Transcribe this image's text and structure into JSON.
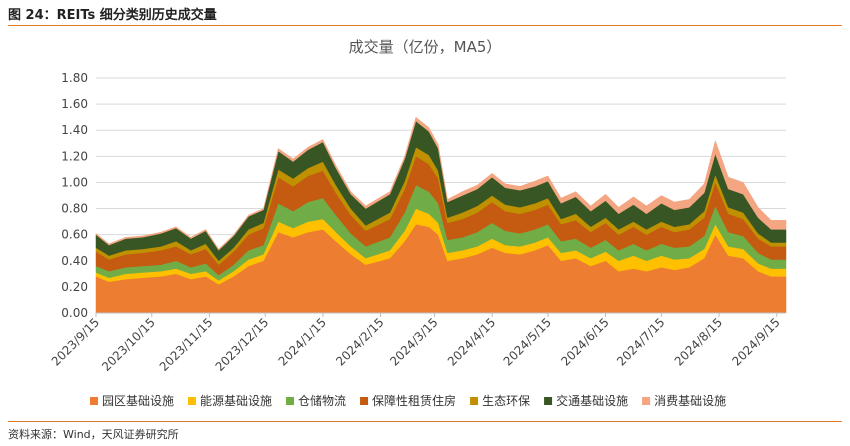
{
  "figure": {
    "title": "图 24：REITs 细分类别历史成交量",
    "source": "资料来源：Wind，天风证券研究所"
  },
  "chart_data": {
    "type": "area",
    "stacked": true,
    "title": "成交量（亿份，MA5）",
    "xlabel": "",
    "ylabel": "",
    "ylim": [
      0,
      1.8
    ],
    "yticks": [
      "0.00",
      "0.20",
      "0.40",
      "0.60",
      "0.80",
      "1.00",
      "1.20",
      "1.40",
      "1.60",
      "1.80"
    ],
    "x_start": "2023/9/15",
    "x_end": "2024/9/20",
    "xticks": [
      "2023/9/15",
      "2023/10/15",
      "2023/11/15",
      "2023/12/15",
      "2024/1/15",
      "2024/2/15",
      "2024/3/15",
      "2024/4/15",
      "2024/5/15",
      "2024/6/15",
      "2024/7/15",
      "2024/8/15",
      "2024/9/15"
    ],
    "grid": "horizontal",
    "legend_position": "bottom",
    "x": [
      "2023/9/15",
      "2023/9/22",
      "2023/10/1",
      "2023/10/10",
      "2023/10/20",
      "2023/10/28",
      "2023/11/5",
      "2023/11/13",
      "2023/11/20",
      "2023/11/28",
      "2023/12/6",
      "2023/12/14",
      "2023/12/22",
      "2023/12/30",
      "2024/1/7",
      "2024/1/15",
      "2024/1/22",
      "2024/1/30",
      "2024/2/7",
      "2024/2/20",
      "2024/2/28",
      "2024/3/5",
      "2024/3/12",
      "2024/3/17",
      "2024/3/22",
      "2024/3/30",
      "2024/4/7",
      "2024/4/15",
      "2024/4/22",
      "2024/4/30",
      "2024/5/8",
      "2024/5/15",
      "2024/5/22",
      "2024/5/30",
      "2024/6/7",
      "2024/6/15",
      "2024/6/22",
      "2024/6/30",
      "2024/7/7",
      "2024/7/15",
      "2024/7/22",
      "2024/7/30",
      "2024/8/7",
      "2024/8/13",
      "2024/8/20",
      "2024/8/28",
      "2024/9/5",
      "2024/9/12",
      "2024/9/20"
    ],
    "series": [
      {
        "name": "园区基础设施",
        "color": "#ed7d31",
        "values": [
          0.28,
          0.24,
          0.26,
          0.27,
          0.28,
          0.3,
          0.26,
          0.28,
          0.22,
          0.28,
          0.36,
          0.4,
          0.62,
          0.58,
          0.62,
          0.64,
          0.55,
          0.45,
          0.37,
          0.42,
          0.55,
          0.68,
          0.66,
          0.6,
          0.4,
          0.42,
          0.45,
          0.5,
          0.46,
          0.45,
          0.48,
          0.52,
          0.4,
          0.42,
          0.36,
          0.4,
          0.32,
          0.34,
          0.32,
          0.35,
          0.33,
          0.35,
          0.42,
          0.6,
          0.44,
          0.42,
          0.32,
          0.28,
          0.28
        ]
      },
      {
        "name": "能源基础设施",
        "color": "#ffc000",
        "values": [
          0.03,
          0.03,
          0.04,
          0.04,
          0.04,
          0.04,
          0.04,
          0.04,
          0.03,
          0.04,
          0.05,
          0.05,
          0.08,
          0.07,
          0.08,
          0.08,
          0.07,
          0.06,
          0.05,
          0.06,
          0.08,
          0.12,
          0.1,
          0.09,
          0.06,
          0.06,
          0.06,
          0.07,
          0.06,
          0.06,
          0.06,
          0.06,
          0.06,
          0.06,
          0.06,
          0.07,
          0.08,
          0.1,
          0.08,
          0.09,
          0.08,
          0.07,
          0.07,
          0.08,
          0.07,
          0.07,
          0.06,
          0.06,
          0.06
        ]
      },
      {
        "name": "仓储物流",
        "color": "#70ad47",
        "values": [
          0.05,
          0.05,
          0.05,
          0.05,
          0.05,
          0.06,
          0.05,
          0.06,
          0.04,
          0.05,
          0.07,
          0.07,
          0.14,
          0.13,
          0.15,
          0.16,
          0.13,
          0.1,
          0.09,
          0.1,
          0.14,
          0.18,
          0.17,
          0.15,
          0.1,
          0.1,
          0.11,
          0.12,
          0.11,
          0.1,
          0.1,
          0.1,
          0.09,
          0.09,
          0.08,
          0.09,
          0.08,
          0.09,
          0.08,
          0.09,
          0.09,
          0.09,
          0.1,
          0.14,
          0.11,
          0.1,
          0.08,
          0.07,
          0.07
        ]
      },
      {
        "name": "保障性租赁住房",
        "color": "#c55a11",
        "values": [
          0.11,
          0.09,
          0.1,
          0.1,
          0.11,
          0.11,
          0.1,
          0.11,
          0.08,
          0.1,
          0.12,
          0.13,
          0.2,
          0.19,
          0.2,
          0.21,
          0.17,
          0.14,
          0.12,
          0.14,
          0.18,
          0.22,
          0.21,
          0.19,
          0.13,
          0.14,
          0.15,
          0.16,
          0.15,
          0.15,
          0.15,
          0.15,
          0.13,
          0.14,
          0.12,
          0.13,
          0.12,
          0.13,
          0.12,
          0.13,
          0.12,
          0.13,
          0.14,
          0.18,
          0.14,
          0.13,
          0.11,
          0.1,
          0.1
        ]
      },
      {
        "name": "生态环保",
        "color": "#bf9000",
        "values": [
          0.03,
          0.03,
          0.03,
          0.03,
          0.03,
          0.04,
          0.03,
          0.04,
          0.03,
          0.03,
          0.04,
          0.04,
          0.06,
          0.06,
          0.06,
          0.07,
          0.06,
          0.05,
          0.04,
          0.05,
          0.06,
          0.07,
          0.07,
          0.06,
          0.04,
          0.05,
          0.05,
          0.05,
          0.05,
          0.05,
          0.05,
          0.05,
          0.04,
          0.05,
          0.04,
          0.04,
          0.04,
          0.04,
          0.04,
          0.04,
          0.04,
          0.04,
          0.05,
          0.06,
          0.05,
          0.05,
          0.04,
          0.03,
          0.03
        ]
      },
      {
        "name": "交通基础设施",
        "color": "#375623",
        "values": [
          0.1,
          0.08,
          0.09,
          0.09,
          0.1,
          0.1,
          0.09,
          0.1,
          0.08,
          0.09,
          0.1,
          0.1,
          0.14,
          0.13,
          0.14,
          0.15,
          0.13,
          0.11,
          0.13,
          0.14,
          0.17,
          0.2,
          0.18,
          0.17,
          0.12,
          0.13,
          0.13,
          0.14,
          0.13,
          0.13,
          0.13,
          0.13,
          0.12,
          0.13,
          0.12,
          0.13,
          0.12,
          0.13,
          0.12,
          0.14,
          0.13,
          0.13,
          0.14,
          0.16,
          0.14,
          0.14,
          0.12,
          0.1,
          0.1
        ]
      },
      {
        "name": "消费基础设施",
        "color": "#f4a582",
        "values": [
          0.01,
          0.01,
          0.01,
          0.01,
          0.01,
          0.01,
          0.01,
          0.01,
          0.01,
          0.01,
          0.01,
          0.01,
          0.02,
          0.02,
          0.02,
          0.02,
          0.02,
          0.02,
          0.02,
          0.02,
          0.02,
          0.03,
          0.03,
          0.03,
          0.02,
          0.03,
          0.03,
          0.03,
          0.03,
          0.03,
          0.04,
          0.04,
          0.04,
          0.04,
          0.04,
          0.05,
          0.05,
          0.06,
          0.06,
          0.06,
          0.06,
          0.06,
          0.07,
          0.1,
          0.09,
          0.09,
          0.08,
          0.07,
          0.07
        ]
      }
    ]
  }
}
